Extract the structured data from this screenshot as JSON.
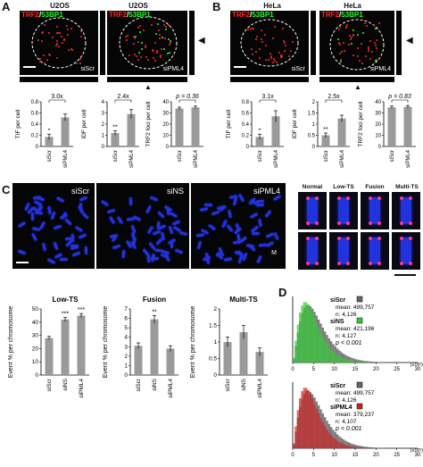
{
  "panels": {
    "A": {
      "letter": "A",
      "cell": "U2OS",
      "images": [
        {
          "label": "siScr"
        },
        {
          "label": "siPML4"
        }
      ],
      "stain_a": "TRF2",
      "stain_sep": "/",
      "stain_b": "53BP1"
    },
    "B": {
      "letter": "B",
      "cell": "HeLa",
      "images": [
        {
          "label": "siScr"
        },
        {
          "label": "siPML4"
        }
      ],
      "stain_a": "TRF2",
      "stain_sep": "/",
      "stain_b": "53BP1"
    },
    "C": {
      "letter": "C",
      "images": [
        {
          "label": "siScr"
        },
        {
          "label": "siNS"
        },
        {
          "label": "siPML4"
        }
      ],
      "extra_label": "M",
      "categories": [
        "Normal",
        "Low-TS",
        "Fusion",
        "Multi-TS"
      ]
    },
    "D": {
      "letter": "D"
    }
  },
  "colors": {
    "trf2": "#ff2a2a",
    "bp53": "#2aff2a",
    "bar": "#9a9a9a",
    "dna": "#2233dd",
    "telo": "#ff3399"
  },
  "chart_data": [
    {
      "id": "A_TIF",
      "type": "bar",
      "ylabel": "TIF per cell",
      "categories": [
        "siScr",
        "siPML4"
      ],
      "values": [
        0.17,
        0.52
      ],
      "errors": [
        0.05,
        0.06
      ],
      "ylim": [
        0,
        0.8
      ],
      "yticks": [
        0,
        0.2,
        0.4,
        0.6,
        0.8
      ],
      "bracket": "3.0x",
      "stars": [
        "*",
        ""
      ]
    },
    {
      "id": "A_IDF",
      "type": "bar",
      "ylabel": "IDF per cell",
      "categories": [
        "siScr",
        "siPML4"
      ],
      "values": [
        1.2,
        2.9
      ],
      "errors": [
        0.2,
        0.4
      ],
      "ylim": [
        0,
        4
      ],
      "yticks": [
        0,
        1,
        2,
        3,
        4
      ],
      "bracket": "2.4x",
      "stars": [
        "**",
        ""
      ]
    },
    {
      "id": "A_TRF2",
      "type": "bar",
      "ylabel": "TRF2 foci per cell",
      "categories": [
        "siScr",
        "siPML4"
      ],
      "values": [
        34,
        35
      ],
      "errors": [
        1.2,
        1.2
      ],
      "ylim": [
        0,
        40
      ],
      "yticks": [
        0,
        10,
        20,
        30,
        40
      ],
      "bracket": "p = 0.36",
      "stars": [
        "",
        ""
      ]
    },
    {
      "id": "B_TIF",
      "type": "bar",
      "ylabel": "TIF per cell",
      "categories": [
        "siScr",
        "siPML4"
      ],
      "values": [
        0.17,
        0.54
      ],
      "errors": [
        0.05,
        0.1
      ],
      "ylim": [
        0,
        0.8
      ],
      "yticks": [
        0,
        0.2,
        0.4,
        0.6,
        0.8
      ],
      "bracket": "3.1x",
      "stars": [
        "*",
        ""
      ]
    },
    {
      "id": "B_IDF",
      "type": "bar",
      "ylabel": "IDF per cell",
      "categories": [
        "siScr",
        "siPML4"
      ],
      "values": [
        0.5,
        1.25
      ],
      "errors": [
        0.1,
        0.15
      ],
      "ylim": [
        0,
        2
      ],
      "yticks": [
        0,
        0.5,
        1,
        1.5,
        2
      ],
      "bracket": "2.5x",
      "stars": [
        "**",
        ""
      ]
    },
    {
      "id": "B_TRF2",
      "type": "bar",
      "ylabel": "TRF2 foci per cell",
      "categories": [
        "siScr",
        "siPML4"
      ],
      "values": [
        35,
        35.5
      ],
      "errors": [
        1.2,
        1.2
      ],
      "ylim": [
        0,
        40
      ],
      "yticks": [
        0,
        10,
        20,
        30,
        40
      ],
      "bracket": "p = 0.83",
      "stars": [
        "",
        ""
      ]
    },
    {
      "id": "C_Low",
      "type": "bar",
      "title": "Low-TS",
      "ylabel": "Event % per chromosome",
      "categories": [
        "siScr",
        "siNS",
        "siPML4"
      ],
      "values": [
        28,
        42,
        45
      ],
      "errors": [
        1.2,
        1.5,
        1.5
      ],
      "ylim": [
        0,
        50
      ],
      "yticks": [
        0,
        10,
        20,
        30,
        40,
        50
      ],
      "stars": [
        "",
        "***",
        "***"
      ]
    },
    {
      "id": "C_Fus",
      "type": "bar",
      "title": "Fusion",
      "ylabel": "Event % per chromosome",
      "categories": [
        "siScr",
        "siNS",
        "siPML4"
      ],
      "values": [
        3.1,
        5.9,
        2.8
      ],
      "errors": [
        0.3,
        0.4,
        0.3
      ],
      "ylim": [
        0,
        7
      ],
      "yticks": [
        0,
        1,
        2,
        3,
        4,
        5,
        6,
        7
      ],
      "stars": [
        "",
        "**",
        ""
      ]
    },
    {
      "id": "C_Mul",
      "type": "bar",
      "title": "Multi-TS",
      "ylabel": "Event % per chromosome",
      "categories": [
        "siScr",
        "siNS",
        "siPML4"
      ],
      "values": [
        1.0,
        1.3,
        0.7
      ],
      "errors": [
        0.15,
        0.2,
        0.12
      ],
      "ylim": [
        0,
        2
      ],
      "yticks": [
        0,
        0.5,
        1,
        1.5,
        2
      ],
      "stars": [
        "",
        "",
        ""
      ]
    },
    {
      "id": "D_top",
      "type": "histogram",
      "xlim": [
        0,
        30
      ],
      "xticks": [
        0,
        5,
        10,
        15,
        20,
        25,
        30
      ],
      "xunit": "(x10³)",
      "series": [
        {
          "name": "siScr",
          "mean": "499,757",
          "n": "4,126",
          "color": "#666666"
        },
        {
          "name": "siNS",
          "mean": "421,196",
          "n": "4,127",
          "color": "#33cc33"
        }
      ],
      "p": "p < 0.001"
    },
    {
      "id": "D_bottom",
      "type": "histogram",
      "xlim": [
        0,
        30
      ],
      "xticks": [
        0,
        5,
        10,
        15,
        20,
        25,
        30
      ],
      "xunit": "(x10³)",
      "series": [
        {
          "name": "siScr",
          "mean": "499,757",
          "n": "4,126",
          "color": "#666666"
        },
        {
          "name": "siPML4",
          "mean": "379,237",
          "n": "4,107",
          "color": "#cc2222"
        }
      ],
      "p": "p < 0.001"
    }
  ]
}
